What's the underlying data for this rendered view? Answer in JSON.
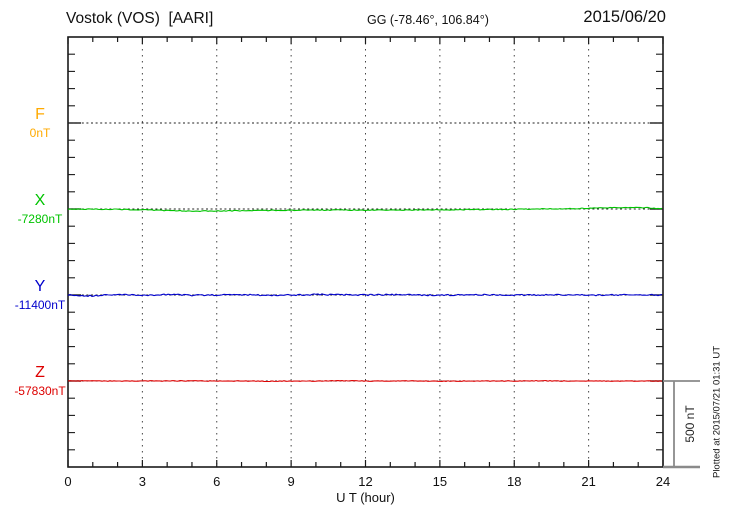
{
  "header": {
    "title": "Vostok (VOS)  [AARI]",
    "coordinates": "GG (-78.46°, 106.84°)",
    "date": "2015/06/20"
  },
  "footer": {
    "xlabel": "U T (hour)",
    "plotted_at": "Plotted at 2015/07/21 01:31 UT"
  },
  "scale_bar": {
    "label": "500 nT",
    "nt": 500
  },
  "colors": {
    "frame": "#1a1a1a",
    "grid": "#444444",
    "scalebar": "#8a8a8a",
    "f_orange": "#FFAA00",
    "x_green": "#00C300",
    "y_blue": "#0000CC",
    "z_red": "#DD0000"
  },
  "chart_data": {
    "type": "line",
    "title": "Magnetogram Vostok (VOS) [AARI] for 2015/06/20",
    "xlabel": "U T (hour)",
    "x_range": [
      0,
      24
    ],
    "x_ticks": [
      0,
      3,
      6,
      9,
      12,
      15,
      18,
      21,
      24
    ],
    "x_minor_step_hours": 1,
    "grid": "dotted vertical lines every 3 h; dotted horizontal baseline at each component reference level",
    "y_tick_step_nt": 100,
    "component_spacing_nt": 500,
    "scale_bar_nt": 500,
    "x_sample_hours": [
      0,
      1,
      2,
      3,
      4,
      5,
      6,
      7,
      8,
      9,
      10,
      11,
      12,
      13,
      14,
      15,
      16,
      17,
      18,
      19,
      20,
      21,
      22,
      23,
      24
    ],
    "series": [
      {
        "label": "F",
        "base_label": "0nT",
        "base_nt": 0,
        "color": "#FFAA00",
        "trace_visible": false,
        "noise_nt": 0,
        "offsets_nt": [
          0,
          0,
          0,
          0,
          0,
          0,
          0,
          0,
          0,
          0,
          0,
          0,
          0,
          0,
          0,
          0,
          0,
          0,
          0,
          0,
          0,
          0,
          0,
          0,
          0
        ]
      },
      {
        "label": "X",
        "base_label": "-7280nT",
        "base_nt": -7280,
        "color": "#00C300",
        "trace_visible": true,
        "noise_nt": 2.5,
        "offsets_nt": [
          0,
          -1,
          -2,
          -5,
          -9,
          -12,
          -12,
          -10,
          -8,
          -7,
          -6,
          -6,
          -7,
          -6,
          -6,
          -5,
          -4,
          -3,
          -2,
          0,
          2,
          4,
          8,
          10,
          2
        ]
      },
      {
        "label": "Y",
        "base_label": "-11400nT",
        "base_nt": -11400,
        "color": "#0000CC",
        "trace_visible": true,
        "noise_nt": 4,
        "offsets_nt": [
          0,
          -5,
          3,
          -3,
          4,
          -2,
          0,
          2,
          -1,
          0,
          3,
          1,
          0,
          2,
          0,
          -1,
          0,
          1,
          0,
          0,
          1,
          -1,
          0,
          1,
          0
        ]
      },
      {
        "label": "Z",
        "base_label": "-57830nT",
        "base_nt": -57830,
        "color": "#DD0000",
        "trace_visible": true,
        "noise_nt": 2,
        "offsets_nt": [
          0,
          1,
          -1,
          0,
          0,
          1,
          0,
          0,
          -1,
          0,
          0,
          1,
          0,
          0,
          0,
          -1,
          0,
          0,
          0,
          1,
          0,
          0,
          -1,
          0,
          0
        ]
      }
    ]
  }
}
